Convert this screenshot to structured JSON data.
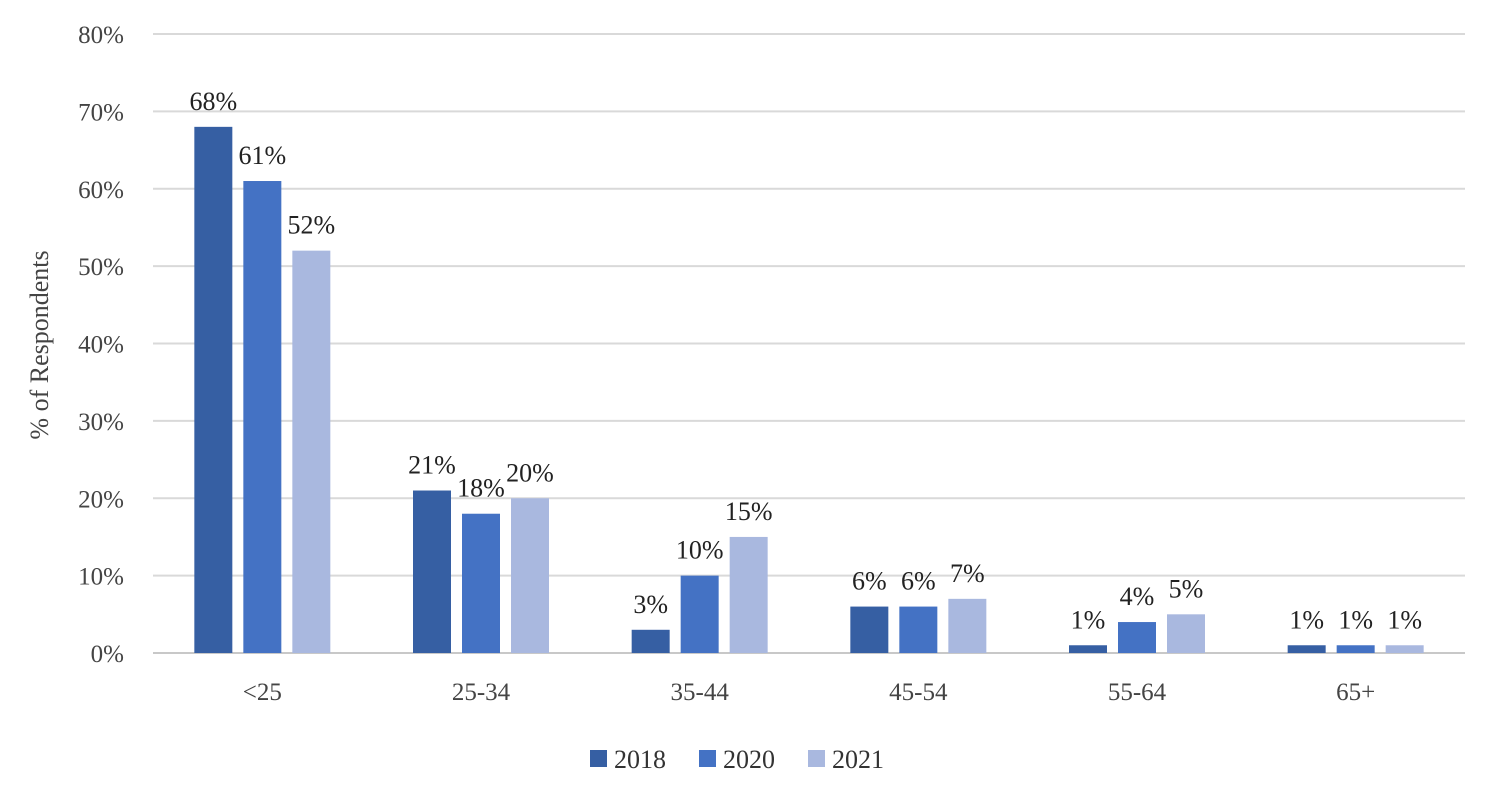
{
  "chart_data": {
    "type": "bar",
    "title": "",
    "xlabel": "",
    "ylabel": "% of Respondents",
    "categories": [
      "<25",
      "25-34",
      "35-44",
      "45-54",
      "55-64",
      "65+"
    ],
    "series": [
      {
        "name": "2018",
        "color": "#365fa3",
        "values": [
          68,
          21,
          3,
          6,
          1,
          1
        ],
        "labels": [
          "68%",
          "21%",
          "3%",
          "6%",
          "1%",
          "1%"
        ]
      },
      {
        "name": "2020",
        "color": "#4472c4",
        "values": [
          61,
          18,
          10,
          6,
          4,
          1
        ],
        "labels": [
          "61%",
          "18%",
          "10%",
          "6%",
          "4%",
          "1%"
        ]
      },
      {
        "name": "2021",
        "color": "#a9b8df",
        "values": [
          52,
          20,
          15,
          7,
          5,
          1
        ],
        "labels": [
          "52%",
          "20%",
          "15%",
          "7%",
          "5%",
          "1%"
        ]
      }
    ],
    "ylim": [
      0,
      80
    ],
    "yticks": [
      0,
      10,
      20,
      30,
      40,
      50,
      60,
      70,
      80
    ],
    "ytick_labels": [
      "0%",
      "10%",
      "20%",
      "30%",
      "40%",
      "50%",
      "60%",
      "70%",
      "80%"
    ],
    "grid": true,
    "legend_position": "bottom-center"
  }
}
